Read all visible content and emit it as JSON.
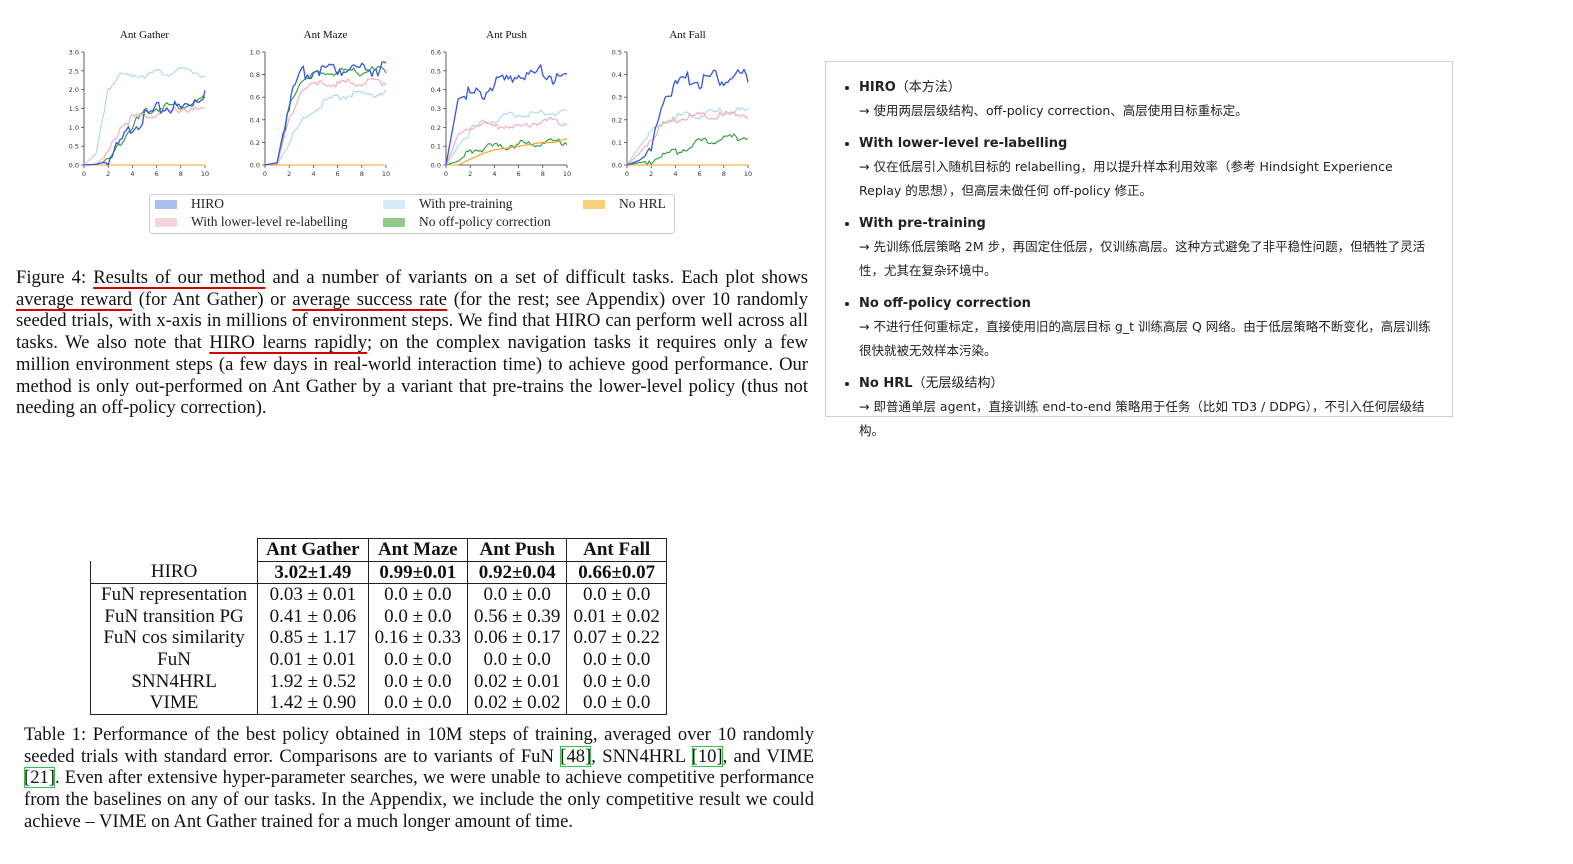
{
  "figure": {
    "legend": [
      {
        "label": "HIRO",
        "color": "#abbfec"
      },
      {
        "label": "With pre-training",
        "color": "#d4ecf4"
      },
      {
        "label": "No HRL",
        "color": "#f9d07a"
      },
      {
        "label": "With lower-level re-labelling",
        "color": "#f9d3dc"
      },
      {
        "label": "No off-policy correction",
        "color": "#8fca88"
      }
    ],
    "caption": {
      "lead": "Figure 4: ",
      "u1": "Results of our method",
      "t1": " and a number of variants on a set of difficult tasks. Each plot shows ",
      "u2": "average reward",
      "t2": " (for Ant Gather) or ",
      "u3": "average success rate",
      "t3": " (for the rest; see Appendix) over 10 randomly seeded trials, with x-axis in millions of environment steps. We find that HIRO can perform well across all tasks. We also note that ",
      "u4": "HIRO learns rapidly",
      "t4": "; on the complex navigation tasks it requires only a few million environment steps (a few days in real-world interaction time) to achieve good performance. Our method is only out-performed on Ant Gather by a variant that pre-trains the lower-level policy (thus not needing an off-policy correction)."
    }
  },
  "chart_data": [
    {
      "type": "line",
      "title": "Ant Gather",
      "xlim": [
        0,
        10
      ],
      "ylim": [
        0,
        3.0
      ],
      "xticks": [
        "0",
        "2",
        "4",
        "6",
        "8",
        "10"
      ],
      "yticks": [
        "0.0",
        "0.5",
        "1.0",
        "1.5",
        "2.0",
        "2.5",
        "3.0"
      ],
      "x": [
        0,
        1,
        2,
        3,
        4,
        5,
        6,
        7,
        8,
        9,
        10
      ],
      "series": [
        {
          "name": "HIRO",
          "color": "#3558dc",
          "values": [
            0,
            0.02,
            0.1,
            0.55,
            1.05,
            1.25,
            1.45,
            1.55,
            1.5,
            1.7,
            1.95
          ]
        },
        {
          "name": "With lower-level re-labelling",
          "color": "#f2a9b8",
          "values": [
            0,
            0.02,
            0.3,
            1.0,
            1.25,
            1.3,
            1.35,
            1.4,
            1.5,
            1.45,
            1.45
          ]
        },
        {
          "name": "With pre-training",
          "color": "#a8d8ee",
          "values": [
            0,
            0.3,
            2.05,
            2.35,
            2.4,
            2.4,
            2.45,
            2.45,
            2.5,
            2.5,
            2.35
          ]
        },
        {
          "name": "No off-policy correction",
          "color": "#2f9a3a",
          "values": [
            0,
            0.02,
            0.1,
            0.6,
            1.05,
            1.4,
            1.5,
            1.6,
            1.55,
            1.65,
            1.75
          ]
        },
        {
          "name": "No HRL",
          "color": "#f0a020",
          "values": [
            0,
            0,
            0,
            0,
            0,
            0,
            0,
            0,
            0,
            0,
            0
          ]
        }
      ]
    },
    {
      "type": "line",
      "title": "Ant Maze",
      "xlim": [
        0,
        10
      ],
      "ylim": [
        0,
        1.0
      ],
      "xticks": [
        "0",
        "2",
        "4",
        "6",
        "8",
        "10"
      ],
      "yticks": [
        "0.0",
        "0.2",
        "0.4",
        "0.6",
        "0.8",
        "1.0"
      ],
      "x": [
        0,
        1,
        2,
        3,
        4,
        5,
        6,
        7,
        8,
        9,
        10
      ],
      "series": [
        {
          "name": "HIRO",
          "color": "#3558dc",
          "values": [
            0,
            0.02,
            0.55,
            0.8,
            0.84,
            0.86,
            0.85,
            0.87,
            0.86,
            0.85,
            0.87
          ]
        },
        {
          "name": "With lower-level re-labelling",
          "color": "#f2a9b8",
          "values": [
            0,
            0.01,
            0.4,
            0.66,
            0.7,
            0.72,
            0.72,
            0.73,
            0.72,
            0.74,
            0.73
          ]
        },
        {
          "name": "With pre-training",
          "color": "#a8d8ee",
          "values": [
            0,
            0,
            0.2,
            0.38,
            0.48,
            0.56,
            0.6,
            0.62,
            0.62,
            0.63,
            0.64
          ]
        },
        {
          "name": "No off-policy correction",
          "color": "#2f9a3a",
          "values": [
            0,
            0.02,
            0.5,
            0.76,
            0.8,
            0.81,
            0.82,
            0.83,
            0.82,
            0.84,
            0.84
          ]
        },
        {
          "name": "No HRL",
          "color": "#f0a020",
          "values": [
            0,
            0,
            0,
            0,
            0,
            0,
            0,
            0,
            0,
            0,
            0
          ]
        }
      ]
    },
    {
      "type": "line",
      "title": "Ant Push",
      "xlim": [
        0,
        10
      ],
      "ylim": [
        0,
        0.6
      ],
      "xticks": [
        "0",
        "2",
        "4",
        "6",
        "8",
        "10"
      ],
      "yticks": [
        "0.0",
        "0.1",
        "0.2",
        "0.3",
        "0.4",
        "0.5",
        "0.6"
      ],
      "x": [
        0,
        1,
        2,
        3,
        4,
        5,
        6,
        7,
        8,
        9,
        10
      ],
      "series": [
        {
          "name": "HIRO",
          "color": "#3558dc",
          "values": [
            0,
            0.35,
            0.38,
            0.38,
            0.44,
            0.45,
            0.48,
            0.48,
            0.5,
            0.46,
            0.48
          ]
        },
        {
          "name": "With lower-level re-labelling",
          "color": "#f2a9b8",
          "values": [
            0,
            0.16,
            0.2,
            0.22,
            0.2,
            0.21,
            0.2,
            0.22,
            0.23,
            0.24,
            0.22
          ]
        },
        {
          "name": "With pre-training",
          "color": "#a8d8ee",
          "values": [
            0,
            0.1,
            0.18,
            0.22,
            0.24,
            0.26,
            0.27,
            0.27,
            0.28,
            0.28,
            0.29
          ]
        },
        {
          "name": "No off-policy correction",
          "color": "#2f9a3a",
          "values": [
            0,
            0.02,
            0.07,
            0.09,
            0.1,
            0.1,
            0.11,
            0.11,
            0.12,
            0.12,
            0.12
          ]
        },
        {
          "name": "No HRL",
          "color": "#f0a020",
          "values": [
            0,
            0,
            0.03,
            0.06,
            0.08,
            0.09,
            0.1,
            0.11,
            0.12,
            0.12,
            0.14
          ]
        }
      ]
    },
    {
      "type": "line",
      "title": "Ant Fall",
      "xlim": [
        0,
        10
      ],
      "ylim": [
        0,
        0.5
      ],
      "xticks": [
        "0",
        "2",
        "4",
        "6",
        "8",
        "10"
      ],
      "yticks": [
        "0.0",
        "0.1",
        "0.2",
        "0.3",
        "0.4",
        "0.5"
      ],
      "x": [
        0,
        1,
        2,
        3,
        4,
        5,
        6,
        7,
        8,
        9,
        10
      ],
      "series": [
        {
          "name": "HIRO",
          "color": "#3558dc",
          "values": [
            0,
            0.02,
            0.06,
            0.3,
            0.35,
            0.38,
            0.37,
            0.39,
            0.38,
            0.39,
            0.4
          ]
        },
        {
          "name": "With lower-level re-labelling",
          "color": "#f2a9b8",
          "values": [
            0,
            0.05,
            0.12,
            0.18,
            0.2,
            0.21,
            0.22,
            0.21,
            0.22,
            0.23,
            0.22
          ]
        },
        {
          "name": "With pre-training",
          "color": "#a8d8ee",
          "values": [
            0,
            0.08,
            0.14,
            0.19,
            0.21,
            0.22,
            0.22,
            0.23,
            0.24,
            0.24,
            0.24
          ]
        },
        {
          "name": "No off-policy correction",
          "color": "#2f9a3a",
          "values": [
            0,
            0.01,
            0.02,
            0.04,
            0.06,
            0.08,
            0.1,
            0.11,
            0.12,
            0.12,
            0.13
          ]
        },
        {
          "name": "No HRL",
          "color": "#f0a020",
          "values": [
            0,
            0,
            0,
            0,
            0,
            0,
            0,
            0,
            0,
            0,
            0
          ]
        }
      ]
    }
  ],
  "notes": [
    {
      "title": "HIRO",
      "paren": "（本方法）",
      "desc": "→ 使用两层层级结构、off-policy correction、高层使用目标重标定。"
    },
    {
      "title": "With lower-level re-labelling",
      "paren": "",
      "desc": "→ 仅在低层引入随机目标的 relabelling，用以提升样本利用效率（参考 Hindsight Experience Replay 的思想），但高层未做任何 off-policy 修正。"
    },
    {
      "title": "With pre-training",
      "paren": "",
      "desc": "→ 先训练低层策略 2M 步，再固定住低层，仅训练高层。这种方式避免了非平稳性问题，但牺牲了灵活性，尤其在复杂环境中。"
    },
    {
      "title": "No off-policy correction",
      "paren": "",
      "desc": "→ 不进行任何重标定，直接使用旧的高层目标 g_t 训练高层 Q 网络。由于低层策略不断变化，高层训练很快就被无效样本污染。"
    },
    {
      "title": "No HRL",
      "paren": "（无层级结构）",
      "desc": "→ 即普通单层 agent，直接训练 end-to-end 策略用于任务（比如 TD3 / DDPG），不引入任何层级结构。"
    }
  ],
  "table": {
    "columns": [
      "Ant Gather",
      "Ant Maze",
      "Ant Push",
      "Ant Fall"
    ],
    "rows": [
      {
        "name": "HIRO",
        "cells": [
          "3.02±1.49",
          "0.99±0.01",
          "0.92±0.04",
          "0.66±0.07"
        ]
      },
      {
        "name": "FuN representation",
        "cells": [
          "0.03 ± 0.01",
          "0.0 ± 0.0",
          "0.0 ± 0.0",
          "0.0 ± 0.0"
        ]
      },
      {
        "name": "FuN transition PG",
        "cells": [
          "0.41 ± 0.06",
          "0.0 ± 0.0",
          "0.56 ± 0.39",
          "0.01 ± 0.02"
        ]
      },
      {
        "name": "FuN cos similarity",
        "cells": [
          "0.85 ± 1.17",
          "0.16 ± 0.33",
          "0.06 ± 0.17",
          "0.07 ± 0.22"
        ]
      },
      {
        "name": "FuN",
        "cells": [
          "0.01 ± 0.01",
          "0.0 ± 0.0",
          "0.0 ± 0.0",
          "0.0 ± 0.0"
        ]
      },
      {
        "name": "SNN4HRL",
        "cells": [
          "1.92 ± 0.52",
          "0.0 ± 0.0",
          "0.02 ± 0.01",
          "0.0 ± 0.0"
        ]
      },
      {
        "name": "VIME",
        "cells": [
          "1.42 ± 0.90",
          "0.0 ± 0.0",
          "0.02 ± 0.02",
          "0.0 ± 0.0"
        ]
      }
    ],
    "caption": {
      "t1": "Table 1: Performance of the best policy obtained in 10M steps of training, averaged over 10 randomly seeded trials with standard error. Comparisons are to variants of FuN ",
      "r1": "[48]",
      "t2": ", SNN4HRL ",
      "r2": "[10]",
      "t3": ", and VIME ",
      "r3": "[21]",
      "t4": ". Even after extensive hyper-parameter searches, we were unable to achieve competitive performance from the baselines on any of our tasks. In the Appendix, we include the only competitive result we could achieve – VIME on Ant Gather trained for a much longer amount of time."
    }
  }
}
